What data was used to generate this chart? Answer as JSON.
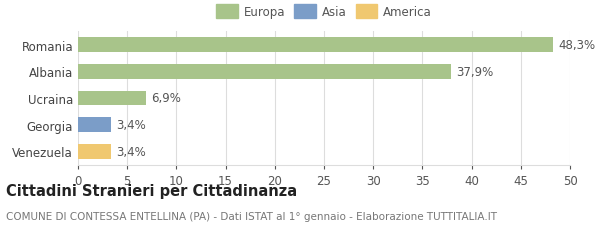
{
  "categories": [
    "Romania",
    "Albania",
    "Ucraina",
    "Georgia",
    "Venezuela"
  ],
  "values": [
    48.3,
    37.9,
    6.9,
    3.4,
    3.4
  ],
  "labels": [
    "48,3%",
    "37,9%",
    "6,9%",
    "3,4%",
    "3,4%"
  ],
  "bar_colors": [
    "#a8c48a",
    "#a8c48a",
    "#a8c48a",
    "#7b9dc8",
    "#f0c870"
  ],
  "legend_items": [
    {
      "label": "Europa",
      "color": "#a8c48a"
    },
    {
      "label": "Asia",
      "color": "#7b9dc8"
    },
    {
      "label": "America",
      "color": "#f0c870"
    }
  ],
  "xlim": [
    0,
    50
  ],
  "xticks": [
    0,
    5,
    10,
    15,
    20,
    25,
    30,
    35,
    40,
    45,
    50
  ],
  "title_bold": "Cittadini Stranieri per Cittadinanza",
  "subtitle": "COMUNE DI CONTESSA ENTELLINA (PA) - Dati ISTAT al 1° gennaio - Elaborazione TUTTITALIA.IT",
  "background_color": "#ffffff",
  "grid_color": "#dddddd",
  "label_fontsize": 8.5,
  "tick_fontsize": 8.5,
  "title_fontsize": 10.5,
  "subtitle_fontsize": 7.5
}
